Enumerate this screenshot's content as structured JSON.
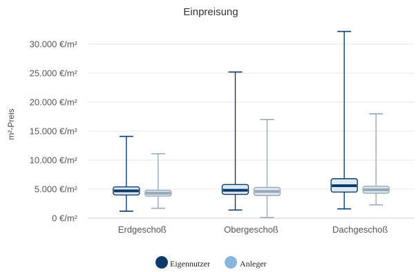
{
  "chart_data": {
    "type": "boxplot",
    "title": "Einpreisung",
    "xlabel": "",
    "ylabel": "m²-Preis",
    "categories": [
      "Erdgeschoß",
      "Obergeschoß",
      "Dachgeschoß"
    ],
    "ylim": [
      0,
      32500
    ],
    "yticks": [
      0,
      5000,
      10000,
      15000,
      20000,
      25000,
      30000
    ],
    "ytick_labels": [
      "0 €/m²",
      "5.000 €/m²",
      "10.000 €/m²",
      "15.000 €/m²",
      "20.000 €/m²",
      "25.000 €/m²",
      "30.000 €/m²"
    ],
    "grid": true,
    "legend_position": "bottom-center",
    "series": [
      {
        "name": "Eigennutzer",
        "color": "#0d3a66",
        "fill": "#dde9f5",
        "boxes": [
          {
            "min": 1200,
            "q1": 4000,
            "median": 4700,
            "q3": 5400,
            "max": 14100
          },
          {
            "min": 1400,
            "q1": 4100,
            "median": 4800,
            "q3": 5800,
            "max": 25200
          },
          {
            "min": 1600,
            "q1": 4500,
            "median": 5600,
            "q3": 6800,
            "max": 32200
          }
        ]
      },
      {
        "name": "Anleger",
        "color": "#9aa8b4",
        "fill": "#dce8f3",
        "legend_color": "#8ab4e0",
        "boxes": [
          {
            "min": 1700,
            "q1": 3800,
            "median": 4300,
            "q3": 4800,
            "max": 11100
          },
          {
            "min": 100,
            "q1": 3900,
            "median": 4600,
            "q3": 5300,
            "max": 17000
          },
          {
            "min": 2300,
            "q1": 4300,
            "median": 4900,
            "q3": 5500,
            "max": 18000
          }
        ]
      }
    ]
  },
  "legend": {
    "items": [
      {
        "label": "Eigennutzer",
        "color": "#0d3a66"
      },
      {
        "label": "Anleger",
        "color": "#8ab4e0"
      }
    ]
  }
}
